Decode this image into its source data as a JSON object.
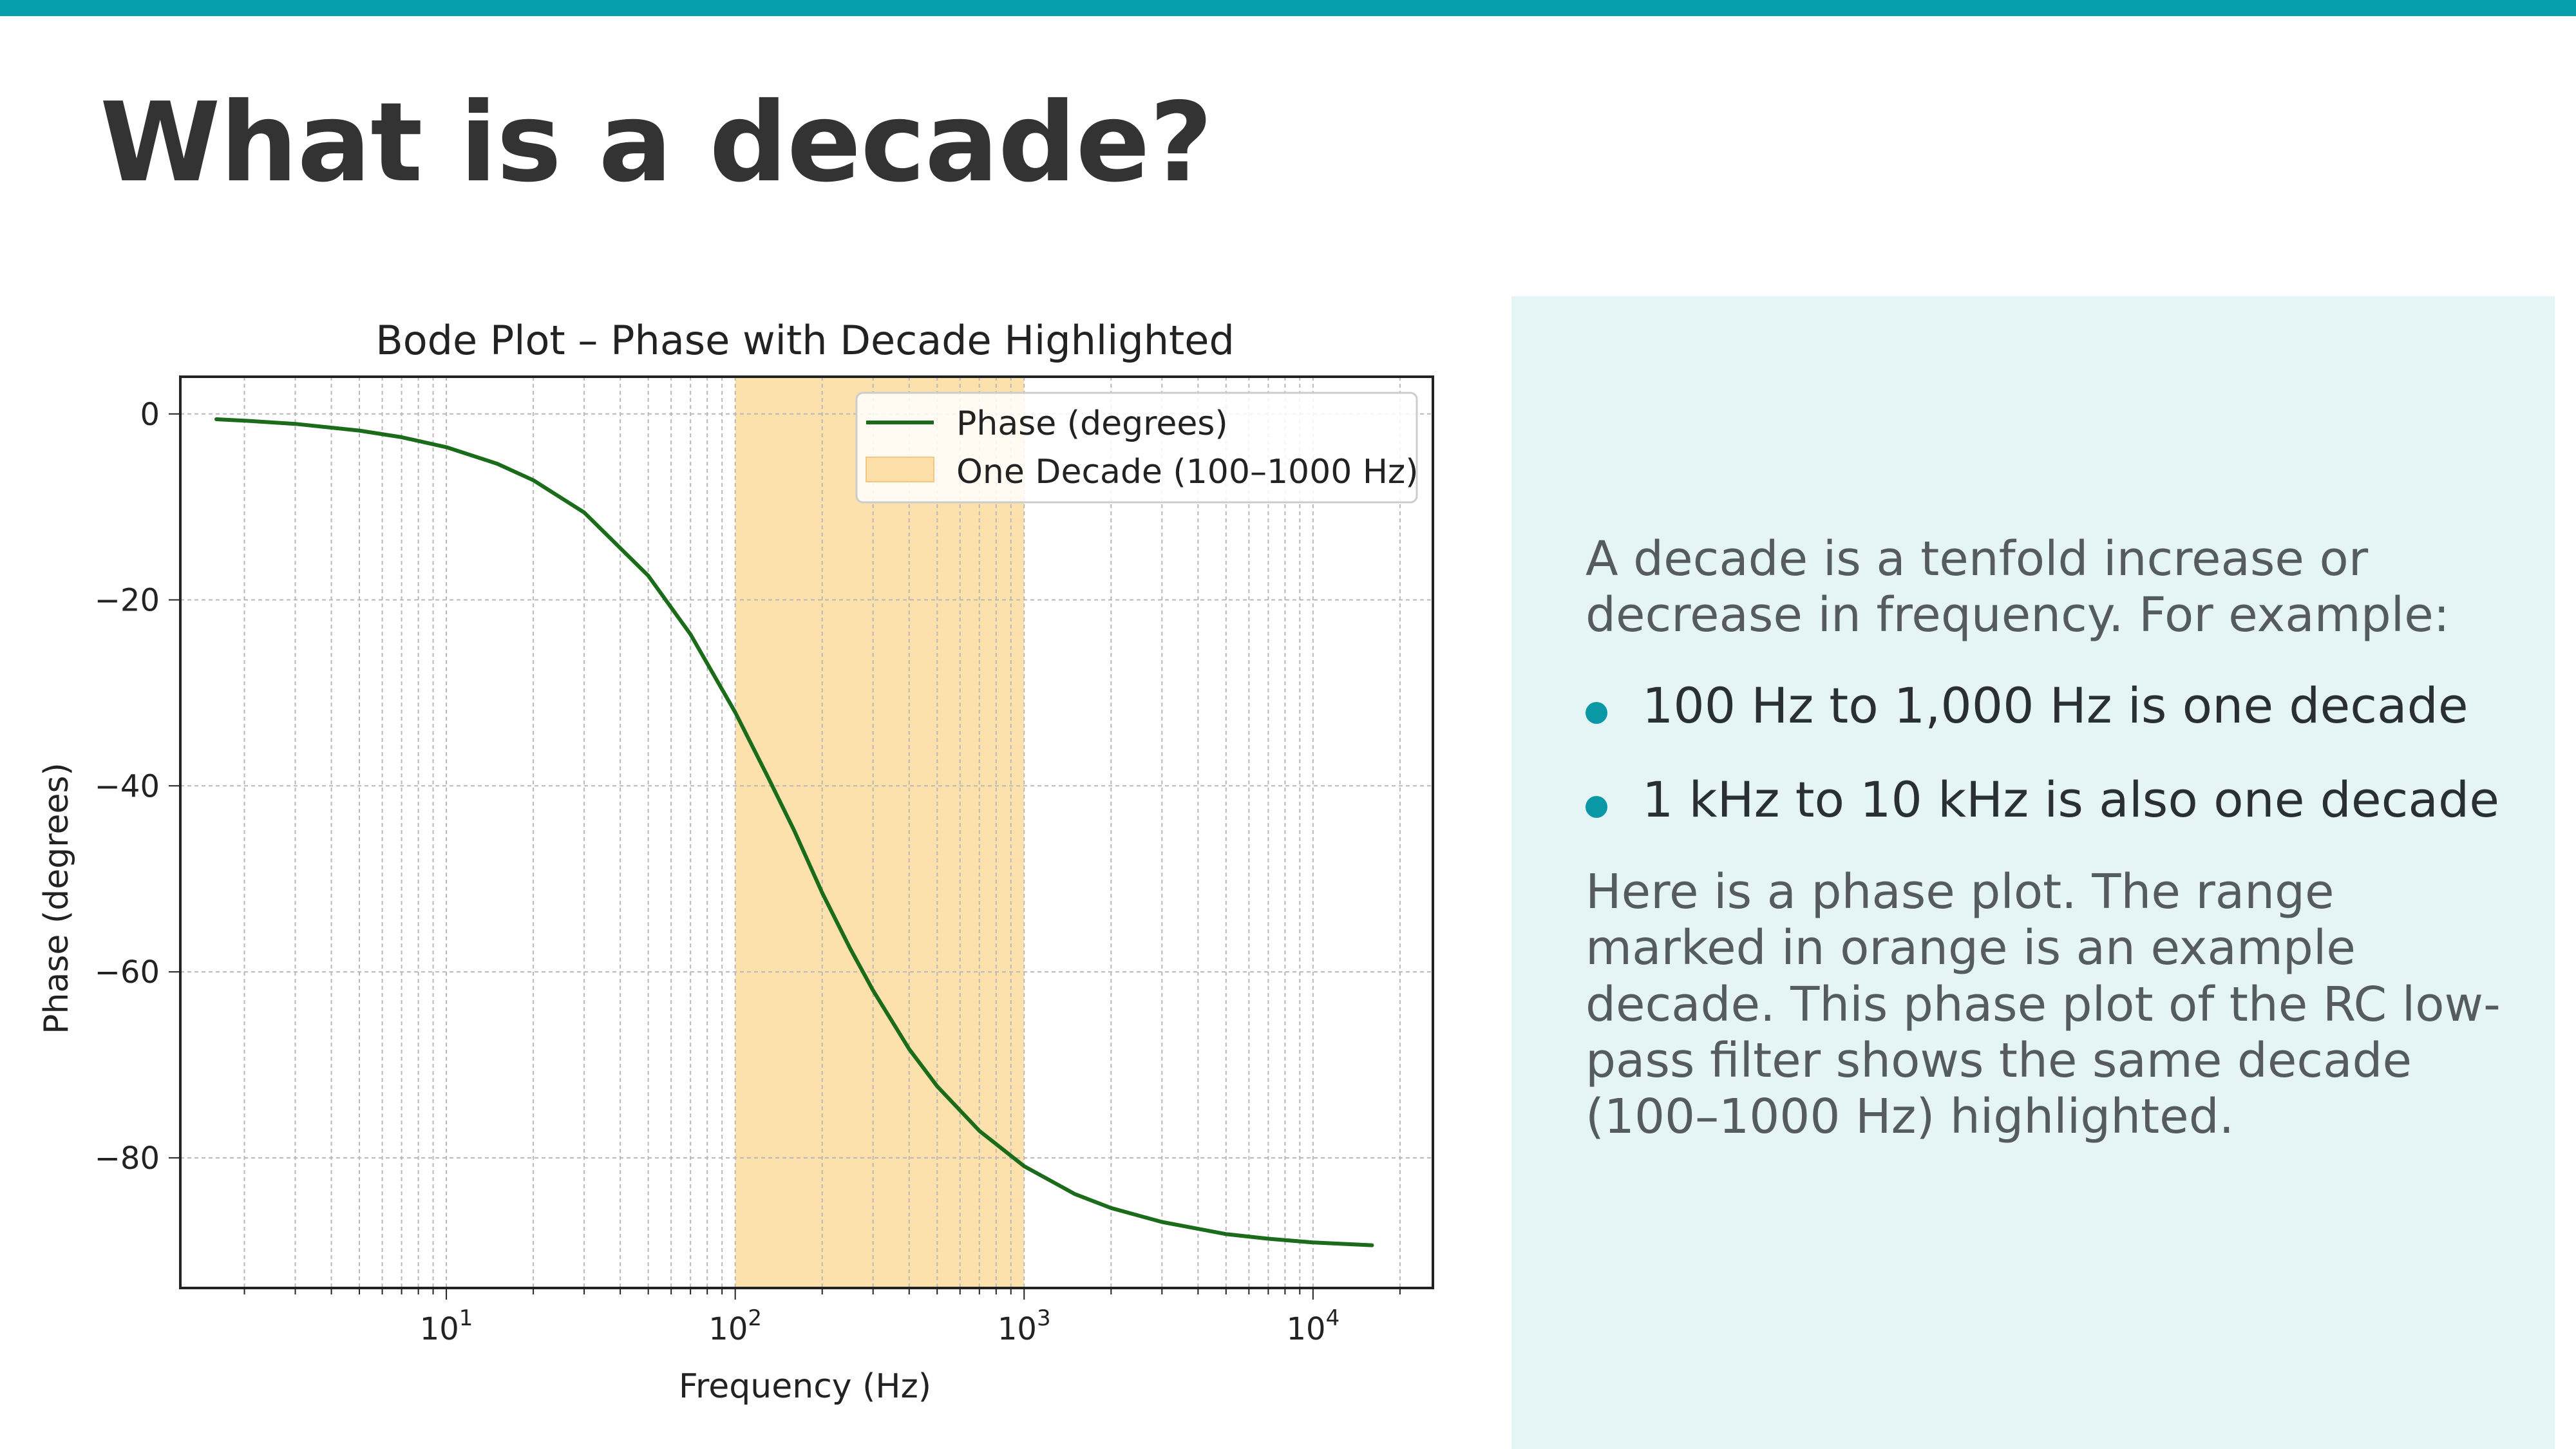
{
  "slide": {
    "title": "What is a decade?",
    "accent_color": "#069fad",
    "panel_color": "#e5f4f4"
  },
  "panel": {
    "intro": "A decade is a tenfold increase or decrease in frequency. For example:",
    "bullets": [
      "100 Hz to 1,000 Hz is one decade",
      "1 kHz to 10 kHz is also one decade"
    ],
    "outro": "Here is a phase plot. The range marked in orange is an example decade. This phase plot of the RC low-pass filter shows the same decade (100–1000 Hz) highlighted."
  },
  "chart_data": {
    "type": "line",
    "title": "Bode Plot – Phase with Decade Highlighted",
    "xlabel": "Frequency (Hz)",
    "ylabel": "Phase (degrees)",
    "xscale": "log",
    "xlim": [
      1.2,
      26000
    ],
    "ylim": [
      -94,
      4
    ],
    "xticks": [
      10,
      100,
      1000,
      10000
    ],
    "xtick_labels": [
      "10",
      "10",
      "10",
      "10"
    ],
    "xtick_exponents": [
      "1",
      "2",
      "3",
      "4"
    ],
    "yticks": [
      0,
      -20,
      -40,
      -60,
      -80
    ],
    "ytick_labels": [
      "0",
      "−20",
      "−40",
      "−60",
      "−80"
    ],
    "grid": true,
    "legend": "top-right",
    "series": [
      {
        "name": "Phase (degrees)",
        "color": "#1a6b1a",
        "x": [
          1.6,
          2,
          3,
          5,
          7,
          10,
          15,
          20,
          30,
          50,
          70,
          100,
          130,
          160,
          200,
          250,
          300,
          400,
          500,
          700,
          1000,
          1500,
          2000,
          3000,
          5000,
          7000,
          10000,
          16000
        ],
        "y": [
          -0.57,
          -0.72,
          -1.07,
          -1.79,
          -2.5,
          -3.58,
          -5.36,
          -7.13,
          -10.6,
          -17.4,
          -23.7,
          -32.1,
          -39.1,
          -44.8,
          -51.5,
          -57.5,
          -62.0,
          -68.3,
          -72.3,
          -77.1,
          -80.9,
          -83.9,
          -85.4,
          -86.9,
          -88.2,
          -88.7,
          -89.1,
          -89.4
        ]
      }
    ],
    "highlight": {
      "name": "One Decade (100–1000 Hz)",
      "from": 100,
      "to": 1000,
      "color": "#fddfa9"
    }
  }
}
